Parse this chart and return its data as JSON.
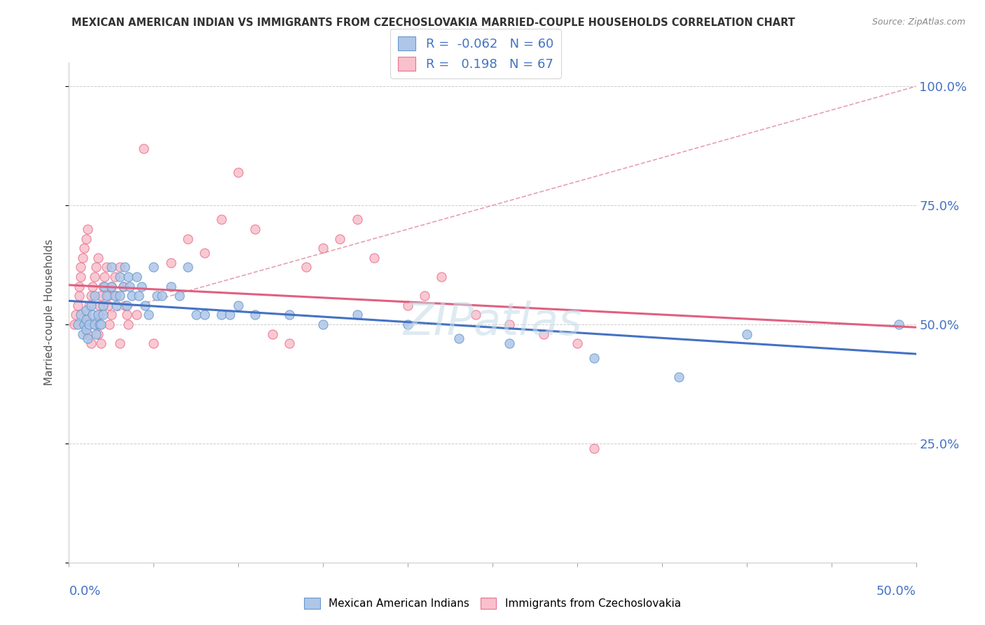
{
  "title": "MEXICAN AMERICAN INDIAN VS IMMIGRANTS FROM CZECHOSLOVAKIA MARRIED-COUPLE HOUSEHOLDS CORRELATION CHART",
  "source": "Source: ZipAtlas.com",
  "ylabel": "Married-couple Households",
  "xlim": [
    0.0,
    0.5
  ],
  "ylim": [
    0.0,
    1.05
  ],
  "yticks": [
    0.0,
    0.25,
    0.5,
    0.75,
    1.0
  ],
  "ytick_labels": [
    "",
    "25.0%",
    "50.0%",
    "75.0%",
    "100.0%"
  ],
  "series1_color": "#aec6e8",
  "series1_edge": "#6699cc",
  "series1_label": "Mexican American Indians",
  "series1_R": -0.062,
  "series1_N": 60,
  "series2_color": "#f9c0cb",
  "series2_edge": "#e87090",
  "series2_label": "Immigrants from Czechoslovakia",
  "series2_R": 0.198,
  "series2_N": 67,
  "legend_R_color": "#4472c4",
  "trendline_blue": "#4472c4",
  "trendline_pink": "#e06080",
  "watermark_color": "#d8e8f0",
  "blue_points_x": [
    0.005,
    0.007,
    0.008,
    0.009,
    0.01,
    0.01,
    0.01,
    0.011,
    0.012,
    0.013,
    0.014,
    0.015,
    0.015,
    0.016,
    0.017,
    0.018,
    0.019,
    0.02,
    0.02,
    0.021,
    0.022,
    0.025,
    0.025,
    0.027,
    0.028,
    0.03,
    0.03,
    0.032,
    0.033,
    0.034,
    0.035,
    0.036,
    0.037,
    0.04,
    0.041,
    0.043,
    0.045,
    0.047,
    0.05,
    0.052,
    0.055,
    0.06,
    0.065,
    0.07,
    0.075,
    0.08,
    0.09,
    0.095,
    0.1,
    0.11,
    0.13,
    0.15,
    0.17,
    0.2,
    0.23,
    0.26,
    0.31,
    0.36,
    0.4,
    0.49
  ],
  "blue_points_y": [
    0.5,
    0.52,
    0.48,
    0.5,
    0.53,
    0.51,
    0.49,
    0.47,
    0.5,
    0.54,
    0.52,
    0.56,
    0.5,
    0.48,
    0.52,
    0.5,
    0.5,
    0.54,
    0.52,
    0.58,
    0.56,
    0.62,
    0.58,
    0.56,
    0.54,
    0.6,
    0.56,
    0.58,
    0.62,
    0.54,
    0.6,
    0.58,
    0.56,
    0.6,
    0.56,
    0.58,
    0.54,
    0.52,
    0.62,
    0.56,
    0.56,
    0.58,
    0.56,
    0.62,
    0.52,
    0.52,
    0.52,
    0.52,
    0.54,
    0.52,
    0.52,
    0.5,
    0.52,
    0.5,
    0.47,
    0.46,
    0.43,
    0.39,
    0.48,
    0.5
  ],
  "pink_points_x": [
    0.003,
    0.004,
    0.005,
    0.006,
    0.006,
    0.007,
    0.007,
    0.008,
    0.009,
    0.009,
    0.01,
    0.01,
    0.011,
    0.011,
    0.012,
    0.013,
    0.013,
    0.014,
    0.015,
    0.015,
    0.016,
    0.017,
    0.017,
    0.018,
    0.018,
    0.019,
    0.019,
    0.02,
    0.021,
    0.022,
    0.023,
    0.023,
    0.024,
    0.025,
    0.025,
    0.027,
    0.028,
    0.03,
    0.03,
    0.032,
    0.033,
    0.034,
    0.035,
    0.04,
    0.044,
    0.05,
    0.06,
    0.07,
    0.08,
    0.09,
    0.1,
    0.11,
    0.12,
    0.13,
    0.14,
    0.15,
    0.16,
    0.17,
    0.18,
    0.2,
    0.21,
    0.22,
    0.24,
    0.26,
    0.28,
    0.3,
    0.31
  ],
  "pink_points_y": [
    0.5,
    0.52,
    0.54,
    0.56,
    0.58,
    0.6,
    0.62,
    0.64,
    0.66,
    0.5,
    0.68,
    0.52,
    0.7,
    0.48,
    0.54,
    0.56,
    0.46,
    0.58,
    0.6,
    0.5,
    0.62,
    0.64,
    0.48,
    0.54,
    0.52,
    0.56,
    0.46,
    0.58,
    0.6,
    0.62,
    0.54,
    0.56,
    0.5,
    0.58,
    0.52,
    0.6,
    0.56,
    0.62,
    0.46,
    0.58,
    0.54,
    0.52,
    0.5,
    0.52,
    0.87,
    0.46,
    0.63,
    0.68,
    0.65,
    0.72,
    0.82,
    0.7,
    0.48,
    0.46,
    0.62,
    0.66,
    0.68,
    0.72,
    0.64,
    0.54,
    0.56,
    0.6,
    0.52,
    0.5,
    0.48,
    0.46,
    0.24
  ]
}
